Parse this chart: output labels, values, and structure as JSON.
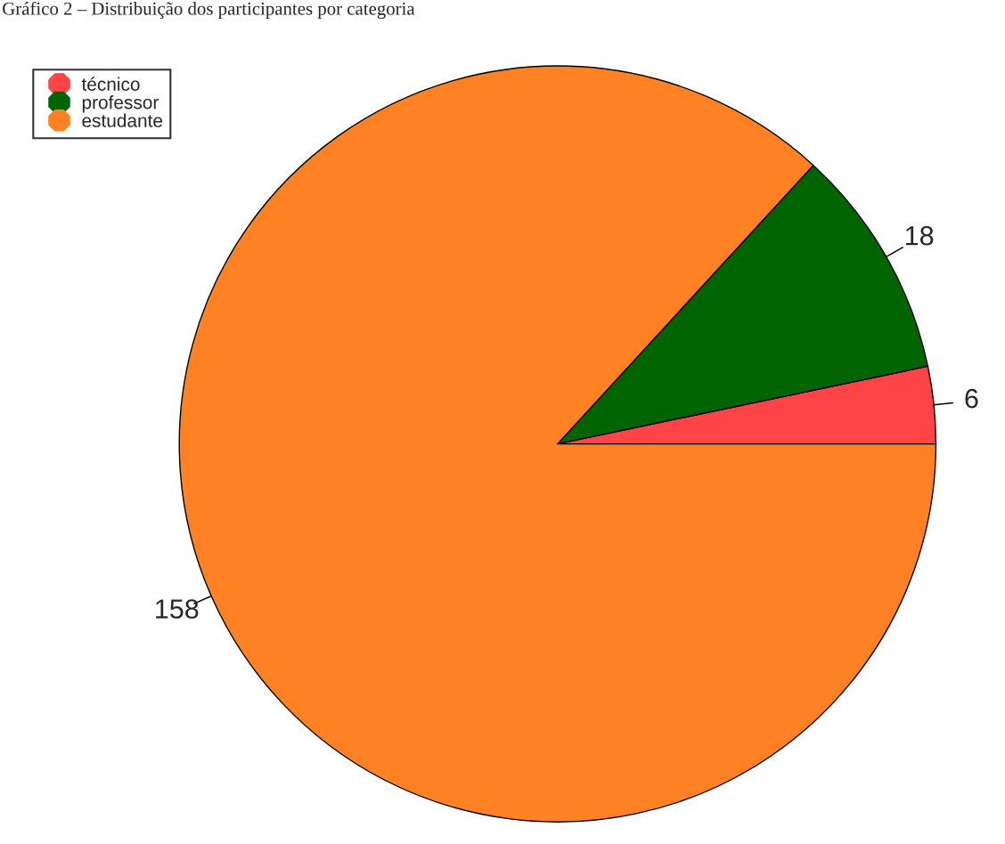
{
  "chart_data": {
    "type": "pie",
    "title": "Gráfico 2 – Distribuição dos participantes por categoria",
    "categories": [
      "técnico",
      "professor",
      "estudante"
    ],
    "values": [
      6,
      18,
      158
    ],
    "colors": [
      "#fe4447",
      "#006400",
      "#fe8123"
    ],
    "data_labels": true,
    "legend": "top left"
  }
}
